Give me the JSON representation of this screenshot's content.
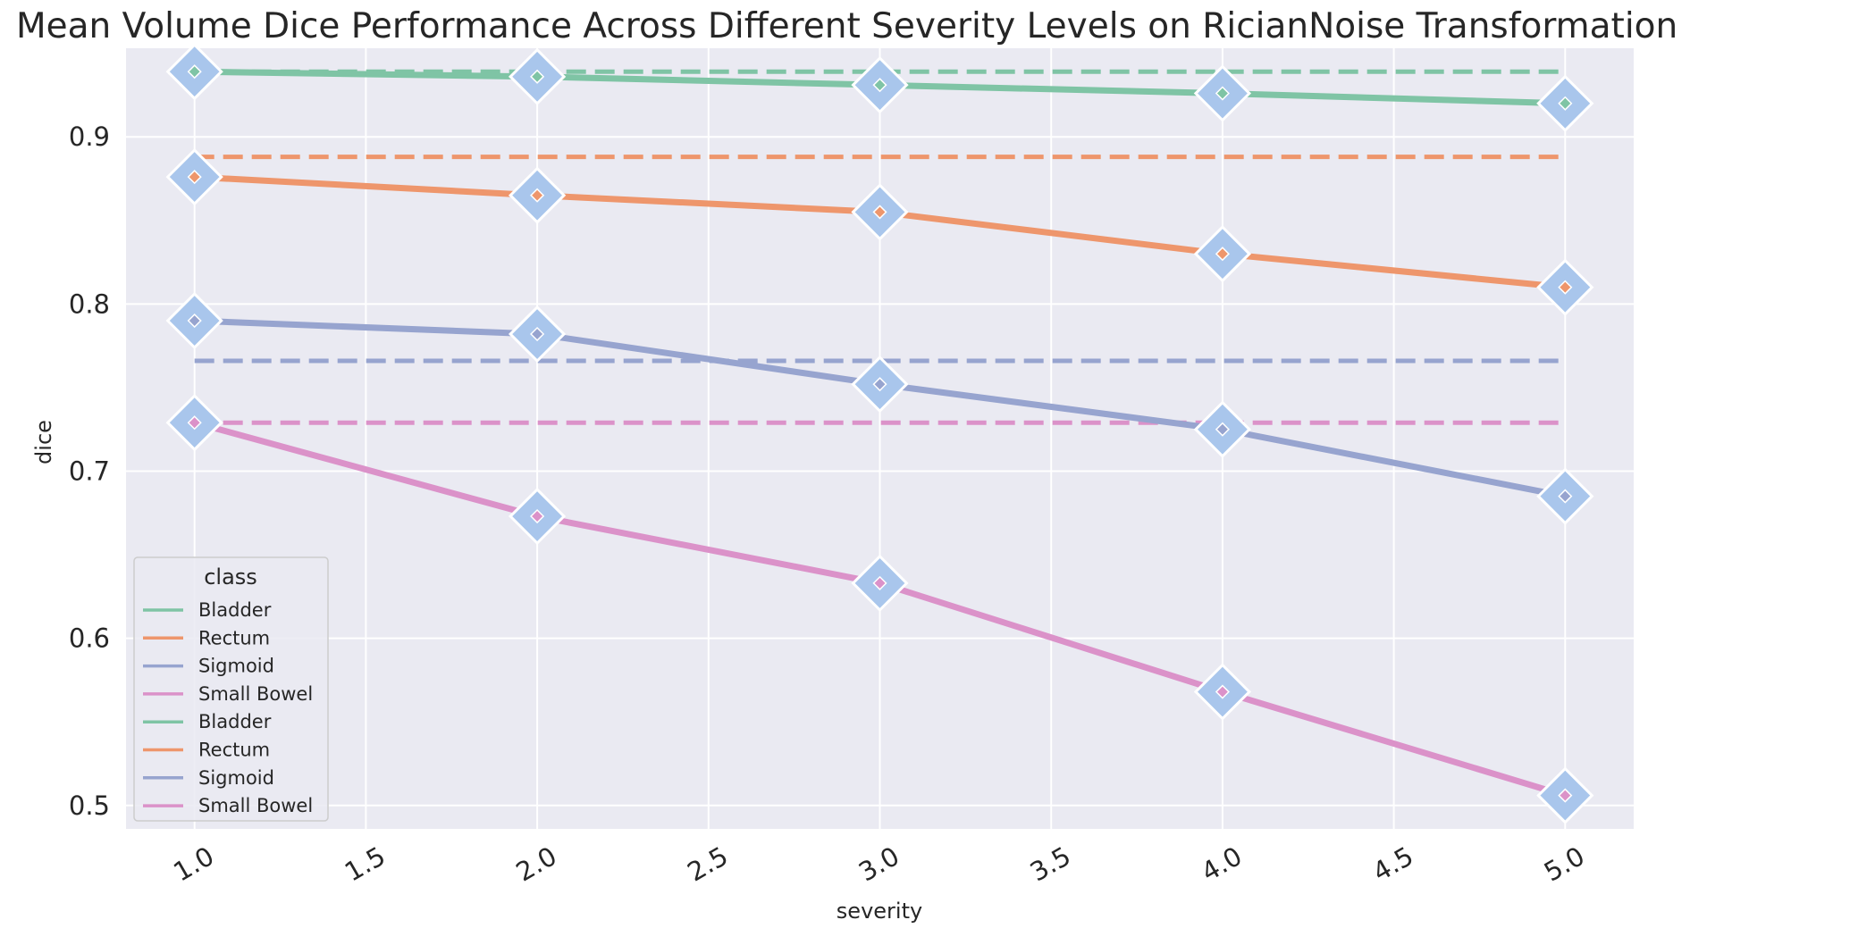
{
  "chart_data": {
    "type": "line",
    "title": "Mean Volume Dice Performance Across Different Severity Levels on RicianNoise Transformation",
    "xlabel": "severity",
    "ylabel": "dice",
    "xlim": [
      0.8,
      5.2
    ],
    "ylim": [
      0.486,
      0.953
    ],
    "x_ticks": [
      1.0,
      1.5,
      2.0,
      2.5,
      3.0,
      3.5,
      4.0,
      4.5,
      5.0
    ],
    "x_tick_labels": [
      "1.0",
      "1.5",
      "2.0",
      "2.5",
      "3.0",
      "3.5",
      "4.0",
      "4.5",
      "5.0"
    ],
    "y_ticks": [
      0.5,
      0.6,
      0.7,
      0.8,
      0.9
    ],
    "y_tick_labels": [
      "0.5",
      "0.6",
      "0.7",
      "0.8",
      "0.9"
    ],
    "x": [
      1.0,
      2.0,
      3.0,
      4.0,
      5.0
    ],
    "grid": true,
    "marker_color": "#a9c6ec",
    "legend": {
      "title": "class",
      "placement": "lower-left",
      "entries": [
        "Bladder",
        "Rectum",
        "Sigmoid",
        "Small Bowel",
        "Bladder",
        "Rectum",
        "Sigmoid",
        "Small Bowel"
      ]
    },
    "series": [
      {
        "name": "Bladder",
        "color": "#7fc4a5",
        "values": [
          0.939,
          0.936,
          0.931,
          0.926,
          0.92
        ]
      },
      {
        "name": "Rectum",
        "color": "#ee966c",
        "values": [
          0.876,
          0.865,
          0.855,
          0.83,
          0.81
        ]
      },
      {
        "name": "Sigmoid",
        "color": "#97a4cf",
        "values": [
          0.79,
          0.782,
          0.752,
          0.725,
          0.685
        ]
      },
      {
        "name": "Small Bowel",
        "color": "#db92c9",
        "values": [
          0.729,
          0.673,
          0.633,
          0.568,
          0.506
        ]
      }
    ],
    "baseline_series": [
      {
        "name": "Bladder",
        "color": "#7fc4a5",
        "value": 0.939
      },
      {
        "name": "Rectum",
        "color": "#ee966c",
        "value": 0.888
      },
      {
        "name": "Sigmoid",
        "color": "#97a4cf",
        "value": 0.766
      },
      {
        "name": "Small Bowel",
        "color": "#db92c9",
        "value": 0.729
      }
    ]
  }
}
